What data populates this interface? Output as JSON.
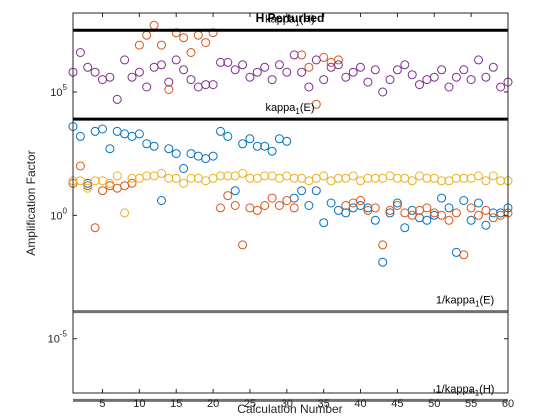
{
  "chart_data": {
    "type": "scatter",
    "title": "H Perturbed",
    "xlabel": "Calculation Number",
    "ylabel": "Amplification Factor",
    "y_scale": "log",
    "xlim": [
      1,
      60
    ],
    "ylim_log10": [
      -7.2,
      8.2
    ],
    "x_ticks": [
      5,
      10,
      15,
      20,
      25,
      30,
      35,
      40,
      45,
      50,
      55,
      60
    ],
    "x_tick_labels": [
      "5",
      "10",
      "15",
      "20",
      "25",
      "30",
      "35",
      "40",
      "45",
      "50",
      "55",
      "60"
    ],
    "y_ticks_log10": [
      -5,
      0,
      5
    ],
    "y_tick_base": "10",
    "grid": false,
    "colors": {
      "axis": "#262626",
      "upper_lines": "#000000",
      "lower_lines": "#707070"
    },
    "reference_lines": [
      {
        "label_main": "kappa",
        "label_sub": "1",
        "label_tail": "(H)",
        "log10_value": 7.5,
        "group": "upper"
      },
      {
        "label_main": "kappa",
        "label_sub": "1",
        "label_tail": "(E)",
        "log10_value": 3.9,
        "group": "upper"
      },
      {
        "label_main": "1/kappa",
        "label_sub": "1",
        "label_tail": "(E)",
        "log10_value": -3.9,
        "group": "lower"
      },
      {
        "label_main": "1/kappa",
        "label_sub": "1",
        "label_tail": "(H)",
        "log10_value": -7.5,
        "group": "lower"
      }
    ],
    "x": [
      1,
      2,
      3,
      4,
      5,
      6,
      7,
      8,
      9,
      10,
      11,
      12,
      13,
      14,
      15,
      16,
      17,
      18,
      19,
      20,
      21,
      22,
      23,
      24,
      25,
      26,
      27,
      28,
      29,
      30,
      31,
      32,
      33,
      34,
      35,
      36,
      37,
      38,
      39,
      40,
      41,
      42,
      43,
      44,
      45,
      46,
      47,
      48,
      49,
      50,
      51,
      52,
      53,
      54,
      55,
      56,
      57,
      58,
      59,
      60
    ],
    "series": [
      {
        "color": "#0072BD",
        "log10_values": [
          3.6,
          3.2,
          1.3,
          3.4,
          3.5,
          2.7,
          3.4,
          3.3,
          3.2,
          3.3,
          2.9,
          2.8,
          0.6,
          2.7,
          2.5,
          1.9,
          2.5,
          2.4,
          2.3,
          2.4,
          3.4,
          3.2,
          1.0,
          2.9,
          3.1,
          2.8,
          2.8,
          2.6,
          3.1,
          3.0,
          0.7,
          1.0,
          0.4,
          1.0,
          -0.3,
          0.5,
          0.2,
          0.1,
          0.3,
          0.4,
          0.3,
          -0.2,
          -1.9,
          0.1,
          0.5,
          -0.5,
          0.2,
          -0.1,
          -0.2,
          0.0,
          0.7,
          0.3,
          -1.5,
          0.6,
          -0.2,
          0.5,
          -0.4,
          0.1,
          0.1,
          0.3
        ]
      },
      {
        "color": "#D95319",
        "log10_values": [
          1.3,
          2.0,
          1.2,
          -0.5,
          1.0,
          1.2,
          1.1,
          1.2,
          1.3,
          6.9,
          7.3,
          7.7,
          6.9,
          5.1,
          7.4,
          7.2,
          6.6,
          7.3,
          7.0,
          7.4,
          0.3,
          0.8,
          0.4,
          -1.2,
          0.3,
          0.2,
          0.4,
          0.7,
          0.4,
          0.6,
          0.3,
          6.5,
          6.0,
          4.5,
          6.4,
          6.2,
          6.3,
          0.4,
          0.5,
          0.6,
          0.2,
          0.3,
          -1.2,
          0.2,
          0.4,
          0.1,
          0.0,
          0.2,
          0.3,
          0.1,
          0.0,
          -0.2,
          0.1,
          -1.6,
          0.3,
          0.0,
          0.2,
          -0.1,
          0.0,
          0.1
        ]
      },
      {
        "color": "#EDB120",
        "log10_values": [
          1.4,
          1.4,
          1.1,
          1.4,
          1.4,
          1.3,
          1.6,
          0.1,
          1.5,
          1.5,
          1.6,
          1.6,
          1.7,
          1.5,
          1.5,
          1.3,
          1.5,
          1.5,
          1.4,
          1.5,
          1.6,
          1.6,
          1.6,
          1.7,
          1.5,
          1.5,
          1.6,
          1.6,
          1.5,
          1.6,
          1.5,
          1.5,
          1.4,
          1.5,
          1.6,
          1.4,
          1.5,
          1.5,
          1.6,
          1.4,
          1.5,
          1.5,
          1.5,
          1.6,
          1.5,
          1.5,
          1.4,
          1.6,
          1.5,
          1.5,
          1.4,
          1.4,
          1.5,
          1.5,
          1.5,
          1.6,
          1.4,
          1.6,
          1.4,
          1.4
        ]
      },
      {
        "color": "#7E2F8E",
        "log10_values": [
          5.8,
          6.6,
          6.0,
          5.8,
          5.5,
          5.6,
          4.7,
          6.3,
          5.6,
          5.8,
          5.2,
          6.0,
          6.1,
          5.4,
          6.3,
          5.9,
          5.5,
          5.2,
          5.3,
          5.3,
          6.2,
          6.2,
          5.9,
          6.1,
          5.6,
          5.8,
          6.0,
          5.5,
          6.1,
          5.8,
          6.5,
          5.8,
          5.2,
          6.3,
          5.5,
          6.0,
          6.1,
          5.6,
          5.8,
          6.0,
          5.4,
          5.9,
          5.0,
          5.5,
          5.9,
          6.1,
          5.7,
          5.3,
          5.5,
          5.6,
          5.9,
          5.2,
          5.6,
          5.9,
          5.5,
          6.3,
          5.6,
          6.0,
          5.2,
          5.4
        ]
      }
    ]
  }
}
